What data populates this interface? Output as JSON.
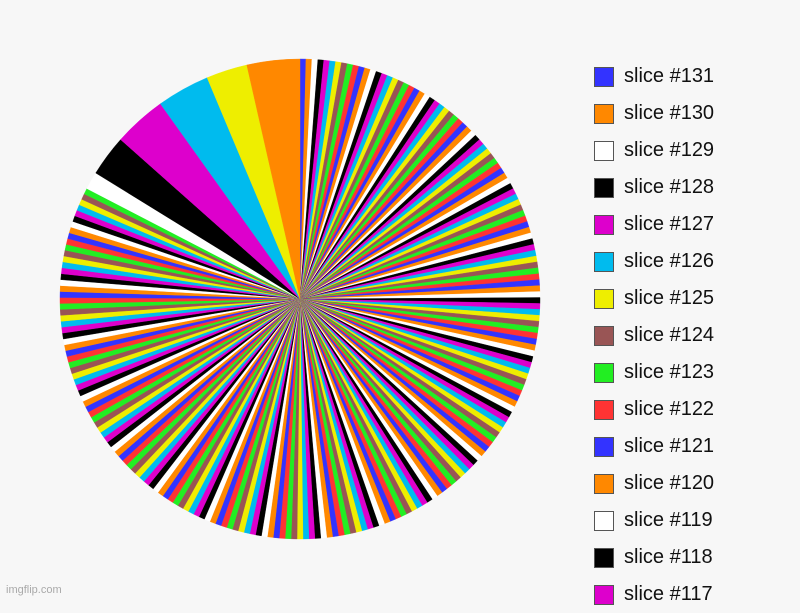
{
  "chart_data": {
    "type": "pie",
    "title": "",
    "slices": [
      {
        "label": "slice #131",
        "value": 1,
        "color": "#3333ff"
      },
      {
        "label": "slice #130",
        "value": 1,
        "color": "#ff8800"
      },
      {
        "label": "slice #129",
        "value": 1,
        "color": "#ffffff"
      },
      {
        "label": "slice #128",
        "value": 1,
        "color": "#000000"
      },
      {
        "label": "slice #127",
        "value": 1,
        "color": "#dd00cc"
      },
      {
        "label": "slice #126",
        "value": 1,
        "color": "#00bbee"
      },
      {
        "label": "slice #125",
        "value": 1,
        "color": "#eeee00"
      },
      {
        "label": "slice #124",
        "value": 1,
        "color": "#995555"
      },
      {
        "label": "slice #123",
        "value": 1,
        "color": "#22ee22"
      },
      {
        "label": "slice #122",
        "value": 1,
        "color": "#ff3333"
      },
      {
        "label": "slice #121",
        "value": 1,
        "color": "#3333ff"
      },
      {
        "label": "slice #120",
        "value": 1,
        "color": "#ff8800"
      },
      {
        "label": "slice #119",
        "value": 1,
        "color": "#ffffff"
      },
      {
        "label": "slice #118",
        "value": 1,
        "color": "#000000"
      },
      {
        "label": "slice #117",
        "value": 1,
        "color": "#dd00cc"
      },
      {
        "label": "",
        "value": 1,
        "color": "#00bbee"
      },
      {
        "label": "",
        "value": 1,
        "color": "#eeee00"
      },
      {
        "label": "",
        "value": 1,
        "color": "#995555"
      },
      {
        "label": "",
        "value": 1,
        "color": "#22ee22"
      },
      {
        "label": "",
        "value": 1,
        "color": "#ff3333"
      },
      {
        "label": "",
        "value": 1,
        "color": "#3333ff"
      },
      {
        "label": "",
        "value": 1,
        "color": "#ff8800"
      },
      {
        "label": "",
        "value": 1,
        "color": "#ffffff"
      },
      {
        "label": "",
        "value": 1,
        "color": "#000000"
      },
      {
        "label": "",
        "value": 1,
        "color": "#dd00cc"
      },
      {
        "label": "",
        "value": 1,
        "color": "#00bbee"
      },
      {
        "label": "",
        "value": 1,
        "color": "#eeee00"
      },
      {
        "label": "",
        "value": 1,
        "color": "#995555"
      },
      {
        "label": "",
        "value": 1,
        "color": "#22ee22"
      },
      {
        "label": "",
        "value": 1,
        "color": "#ff3333"
      },
      {
        "label": "",
        "value": 1,
        "color": "#3333ff"
      },
      {
        "label": "",
        "value": 1,
        "color": "#ff8800"
      },
      {
        "label": "",
        "value": 1,
        "color": "#ffffff"
      },
      {
        "label": "",
        "value": 1,
        "color": "#000000"
      },
      {
        "label": "",
        "value": 1,
        "color": "#dd00cc"
      },
      {
        "label": "",
        "value": 1,
        "color": "#00bbee"
      },
      {
        "label": "",
        "value": 1,
        "color": "#eeee00"
      },
      {
        "label": "",
        "value": 1,
        "color": "#995555"
      },
      {
        "label": "",
        "value": 1,
        "color": "#22ee22"
      },
      {
        "label": "",
        "value": 1,
        "color": "#ff3333"
      },
      {
        "label": "",
        "value": 1,
        "color": "#3333ff"
      },
      {
        "label": "",
        "value": 1,
        "color": "#ff8800"
      },
      {
        "label": "",
        "value": 1,
        "color": "#ffffff"
      },
      {
        "label": "",
        "value": 1,
        "color": "#000000"
      },
      {
        "label": "",
        "value": 1,
        "color": "#dd00cc"
      },
      {
        "label": "",
        "value": 1,
        "color": "#00bbee"
      },
      {
        "label": "",
        "value": 1,
        "color": "#eeee00"
      },
      {
        "label": "",
        "value": 1,
        "color": "#995555"
      },
      {
        "label": "",
        "value": 1,
        "color": "#22ee22"
      },
      {
        "label": "",
        "value": 1,
        "color": "#ff3333"
      },
      {
        "label": "",
        "value": 1,
        "color": "#3333ff"
      },
      {
        "label": "",
        "value": 1,
        "color": "#ff8800"
      },
      {
        "label": "",
        "value": 1,
        "color": "#ffffff"
      },
      {
        "label": "",
        "value": 1,
        "color": "#000000"
      },
      {
        "label": "",
        "value": 1,
        "color": "#dd00cc"
      },
      {
        "label": "",
        "value": 1,
        "color": "#00bbee"
      },
      {
        "label": "",
        "value": 1,
        "color": "#eeee00"
      },
      {
        "label": "",
        "value": 1,
        "color": "#995555"
      },
      {
        "label": "",
        "value": 1,
        "color": "#22ee22"
      },
      {
        "label": "",
        "value": 1,
        "color": "#ff3333"
      },
      {
        "label": "",
        "value": 1,
        "color": "#3333ff"
      },
      {
        "label": "",
        "value": 1,
        "color": "#ff8800"
      },
      {
        "label": "",
        "value": 1,
        "color": "#ffffff"
      },
      {
        "label": "",
        "value": 1,
        "color": "#000000"
      },
      {
        "label": "",
        "value": 1,
        "color": "#dd00cc"
      },
      {
        "label": "",
        "value": 1,
        "color": "#00bbee"
      },
      {
        "label": "",
        "value": 1,
        "color": "#eeee00"
      },
      {
        "label": "",
        "value": 1,
        "color": "#995555"
      },
      {
        "label": "",
        "value": 1,
        "color": "#22ee22"
      },
      {
        "label": "",
        "value": 1,
        "color": "#ff3333"
      },
      {
        "label": "",
        "value": 1,
        "color": "#3333ff"
      },
      {
        "label": "",
        "value": 1,
        "color": "#ff8800"
      },
      {
        "label": "",
        "value": 1,
        "color": "#ffffff"
      },
      {
        "label": "",
        "value": 1,
        "color": "#000000"
      },
      {
        "label": "",
        "value": 1,
        "color": "#dd00cc"
      },
      {
        "label": "",
        "value": 1,
        "color": "#00bbee"
      },
      {
        "label": "",
        "value": 1,
        "color": "#eeee00"
      },
      {
        "label": "",
        "value": 1,
        "color": "#995555"
      },
      {
        "label": "",
        "value": 1,
        "color": "#22ee22"
      },
      {
        "label": "",
        "value": 1,
        "color": "#ff3333"
      },
      {
        "label": "",
        "value": 1,
        "color": "#3333ff"
      },
      {
        "label": "",
        "value": 1,
        "color": "#ff8800"
      },
      {
        "label": "",
        "value": 1,
        "color": "#ffffff"
      },
      {
        "label": "",
        "value": 1,
        "color": "#000000"
      },
      {
        "label": "",
        "value": 1,
        "color": "#dd00cc"
      },
      {
        "label": "",
        "value": 1,
        "color": "#00bbee"
      },
      {
        "label": "",
        "value": 1,
        "color": "#eeee00"
      },
      {
        "label": "",
        "value": 1,
        "color": "#995555"
      },
      {
        "label": "",
        "value": 1,
        "color": "#22ee22"
      },
      {
        "label": "",
        "value": 1,
        "color": "#ff3333"
      },
      {
        "label": "",
        "value": 1,
        "color": "#3333ff"
      },
      {
        "label": "",
        "value": 1,
        "color": "#ff8800"
      },
      {
        "label": "",
        "value": 1,
        "color": "#ffffff"
      },
      {
        "label": "",
        "value": 1,
        "color": "#000000"
      },
      {
        "label": "",
        "value": 1,
        "color": "#dd00cc"
      },
      {
        "label": "",
        "value": 1,
        "color": "#00bbee"
      },
      {
        "label": "",
        "value": 1,
        "color": "#eeee00"
      },
      {
        "label": "",
        "value": 1,
        "color": "#995555"
      },
      {
        "label": "",
        "value": 1,
        "color": "#22ee22"
      },
      {
        "label": "",
        "value": 1,
        "color": "#ff3333"
      },
      {
        "label": "",
        "value": 1,
        "color": "#3333ff"
      },
      {
        "label": "",
        "value": 1,
        "color": "#ff8800"
      },
      {
        "label": "",
        "value": 1,
        "color": "#ffffff"
      },
      {
        "label": "",
        "value": 1,
        "color": "#000000"
      },
      {
        "label": "",
        "value": 1,
        "color": "#dd00cc"
      },
      {
        "label": "",
        "value": 1,
        "color": "#00bbee"
      },
      {
        "label": "",
        "value": 1,
        "color": "#eeee00"
      },
      {
        "label": "",
        "value": 1,
        "color": "#995555"
      },
      {
        "label": "",
        "value": 1,
        "color": "#22ee22"
      },
      {
        "label": "",
        "value": 1,
        "color": "#ff3333"
      },
      {
        "label": "",
        "value": 1,
        "color": "#3333ff"
      },
      {
        "label": "",
        "value": 1,
        "color": "#ff8800"
      },
      {
        "label": "",
        "value": 1,
        "color": "#ffffff"
      },
      {
        "label": "",
        "value": 1,
        "color": "#000000"
      },
      {
        "label": "",
        "value": 1,
        "color": "#dd00cc"
      },
      {
        "label": "",
        "value": 1,
        "color": "#00bbee"
      },
      {
        "label": "",
        "value": 1,
        "color": "#eeee00"
      },
      {
        "label": "",
        "value": 1,
        "color": "#995555"
      },
      {
        "label": "",
        "value": 1,
        "color": "#22ee22"
      },
      {
        "label": "",
        "value": 1,
        "color": "#ff3333"
      },
      {
        "label": "",
        "value": 1,
        "color": "#3333ff"
      },
      {
        "label": "",
        "value": 1,
        "color": "#ff8800"
      },
      {
        "label": "",
        "value": 1,
        "color": "#ffffff"
      },
      {
        "label": "",
        "value": 1,
        "color": "#000000"
      },
      {
        "label": "",
        "value": 1,
        "color": "#dd00cc"
      },
      {
        "label": "",
        "value": 1,
        "color": "#00bbee"
      },
      {
        "label": "",
        "value": 1,
        "color": "#eeee00"
      },
      {
        "label": "",
        "value": 1,
        "color": "#995555"
      },
      {
        "label": "",
        "value": 1,
        "color": "#22ee22"
      },
      {
        "label": "",
        "value": 1,
        "color": "#ff3333"
      },
      {
        "label": "",
        "value": 1,
        "color": "#3333ff"
      },
      {
        "label": "",
        "value": 1,
        "color": "#ff8800"
      },
      {
        "label": "",
        "value": 1,
        "color": "#ffffff"
      },
      {
        "label": "",
        "value": 1,
        "color": "#000000"
      },
      {
        "label": "",
        "value": 1,
        "color": "#dd00cc"
      },
      {
        "label": "",
        "value": 1,
        "color": "#00bbee"
      },
      {
        "label": "",
        "value": 1,
        "color": "#eeee00"
      },
      {
        "label": "",
        "value": 1,
        "color": "#995555"
      },
      {
        "label": "",
        "value": 1,
        "color": "#22ee22"
      },
      {
        "label": "",
        "value": 1,
        "color": "#ff3333"
      },
      {
        "label": "",
        "value": 1,
        "color": "#3333ff"
      },
      {
        "label": "",
        "value": 1,
        "color": "#ff8800"
      },
      {
        "label": "",
        "value": 1,
        "color": "#ffffff"
      },
      {
        "label": "",
        "value": 1,
        "color": "#000000"
      },
      {
        "label": "",
        "value": 1,
        "color": "#dd00cc"
      },
      {
        "label": "",
        "value": 1,
        "color": "#00bbee"
      },
      {
        "label": "",
        "value": 1,
        "color": "#eeee00"
      },
      {
        "label": "",
        "value": 1,
        "color": "#995555"
      },
      {
        "label": "",
        "value": 1,
        "color": "#22ee22"
      },
      {
        "label": "",
        "value": 1,
        "color": "#ff3333"
      },
      {
        "label": "",
        "value": 1,
        "color": "#3333ff"
      },
      {
        "label": "",
        "value": 1,
        "color": "#ff8800"
      },
      {
        "label": "",
        "value": 1,
        "color": "#ffffff"
      },
      {
        "label": "",
        "value": 1,
        "color": "#000000"
      },
      {
        "label": "",
        "value": 1,
        "color": "#dd00cc"
      },
      {
        "label": "",
        "value": 1,
        "color": "#00bbee"
      },
      {
        "label": "",
        "value": 1,
        "color": "#eeee00"
      },
      {
        "label": "",
        "value": 1,
        "color": "#995555"
      },
      {
        "label": "",
        "value": 1,
        "color": "#22ee22"
      },
      {
        "label": "",
        "value": 1,
        "color": "#ff3333"
      },
      {
        "label": "",
        "value": 1,
        "color": "#3333ff"
      },
      {
        "label": "",
        "value": 1,
        "color": "#ff8800"
      },
      {
        "label": "",
        "value": 1,
        "color": "#ffffff"
      },
      {
        "label": "",
        "value": 1,
        "color": "#000000"
      },
      {
        "label": "",
        "value": 1,
        "color": "#dd00cc"
      },
      {
        "label": "",
        "value": 1,
        "color": "#00bbee"
      },
      {
        "label": "",
        "value": 1,
        "color": "#eeee00"
      },
      {
        "label": "",
        "value": 1,
        "color": "#995555"
      },
      {
        "label": "",
        "value": 1,
        "color": "#22ee22"
      },
      {
        "label": "",
        "value": 1,
        "color": "#ff3333"
      },
      {
        "label": "",
        "value": 1,
        "color": "#3333ff"
      },
      {
        "label": "",
        "value": 1,
        "color": "#ff8800"
      },
      {
        "label": "",
        "value": 1,
        "color": "#ffffff"
      },
      {
        "label": "",
        "value": 1,
        "color": "#000000"
      },
      {
        "label": "",
        "value": 1,
        "color": "#dd00cc"
      },
      {
        "label": "",
        "value": 1,
        "color": "#00bbee"
      },
      {
        "label": "",
        "value": 1,
        "color": "#eeee00"
      },
      {
        "label": "",
        "value": 1,
        "color": "#995555"
      },
      {
        "label": "",
        "value": 1,
        "color": "#22ee22"
      },
      {
        "label": "",
        "value": 1,
        "color": "#ff3333"
      },
      {
        "label": "",
        "value": 1,
        "color": "#3333ff"
      },
      {
        "label": "",
        "value": 1,
        "color": "#ff8800"
      },
      {
        "label": "",
        "value": 1,
        "color": "#ffffff"
      },
      {
        "label": "",
        "value": 1,
        "color": "#000000"
      },
      {
        "label": "",
        "value": 1,
        "color": "#dd00cc"
      },
      {
        "label": "",
        "value": 1,
        "color": "#00bbee"
      },
      {
        "label": "",
        "value": 1,
        "color": "#eeee00"
      },
      {
        "label": "",
        "value": 1,
        "color": "#995555"
      },
      {
        "label": "",
        "value": 1,
        "color": "#22ee22"
      },
      {
        "label": "",
        "value": 1,
        "color": "#ff3333"
      },
      {
        "label": "",
        "value": 1,
        "color": "#3333ff"
      },
      {
        "label": "",
        "value": 1,
        "color": "#ff8800"
      },
      {
        "label": "",
        "value": 1,
        "color": "#ffffff"
      },
      {
        "label": "",
        "value": 1,
        "color": "#000000"
      },
      {
        "label": "",
        "value": 1,
        "color": "#dd00cc"
      },
      {
        "label": "",
        "value": 1,
        "color": "#00bbee"
      },
      {
        "label": "",
        "value": 1,
        "color": "#eeee00"
      },
      {
        "label": "",
        "value": 1,
        "color": "#995555"
      },
      {
        "label": "",
        "value": 1,
        "color": "#22ee22"
      },
      {
        "label": "",
        "value": 1,
        "color": "#ff3333"
      },
      {
        "label": "",
        "value": 1,
        "color": "#3333ff"
      },
      {
        "label": "",
        "value": 1,
        "color": "#ff8800"
      },
      {
        "label": "",
        "value": 1,
        "color": "#ffffff"
      },
      {
        "label": "",
        "value": 1,
        "color": "#000000"
      },
      {
        "label": "",
        "value": 1,
        "color": "#dd00cc"
      },
      {
        "label": "",
        "value": 1,
        "color": "#00bbee"
      },
      {
        "label": "",
        "value": 1,
        "color": "#eeee00"
      },
      {
        "label": "",
        "value": 1,
        "color": "#995555"
      },
      {
        "label": "",
        "value": 1,
        "color": "#22ee22"
      },
      {
        "label": "",
        "value": 3,
        "color": "#ffffff"
      },
      {
        "label": "",
        "value": 7,
        "color": "#000000"
      },
      {
        "label": "",
        "value": 9,
        "color": "#dd00cc"
      },
      {
        "label": "",
        "value": 9,
        "color": "#00bbee"
      },
      {
        "label": "",
        "value": 7,
        "color": "#eeee00"
      },
      {
        "label": "",
        "value": 9,
        "color": "#ff8800"
      }
    ],
    "legend": {
      "position": "right",
      "items": [
        {
          "label": "slice #131",
          "color": "#3333ff"
        },
        {
          "label": "slice #130",
          "color": "#ff8800"
        },
        {
          "label": "slice #129",
          "color": "#ffffff"
        },
        {
          "label": "slice #128",
          "color": "#000000"
        },
        {
          "label": "slice #127",
          "color": "#dd00cc"
        },
        {
          "label": "slice #126",
          "color": "#00bbee"
        },
        {
          "label": "slice #125",
          "color": "#eeee00"
        },
        {
          "label": "slice #124",
          "color": "#995555"
        },
        {
          "label": "slice #123",
          "color": "#22ee22"
        },
        {
          "label": "slice #122",
          "color": "#ff3333"
        },
        {
          "label": "slice #121",
          "color": "#3333ff"
        },
        {
          "label": "slice #120",
          "color": "#ff8800"
        },
        {
          "label": "slice #119",
          "color": "#ffffff"
        },
        {
          "label": "slice #118",
          "color": "#000000"
        },
        {
          "label": "slice #117",
          "color": "#dd00cc"
        }
      ]
    }
  },
  "watermark": "imgflip.com"
}
